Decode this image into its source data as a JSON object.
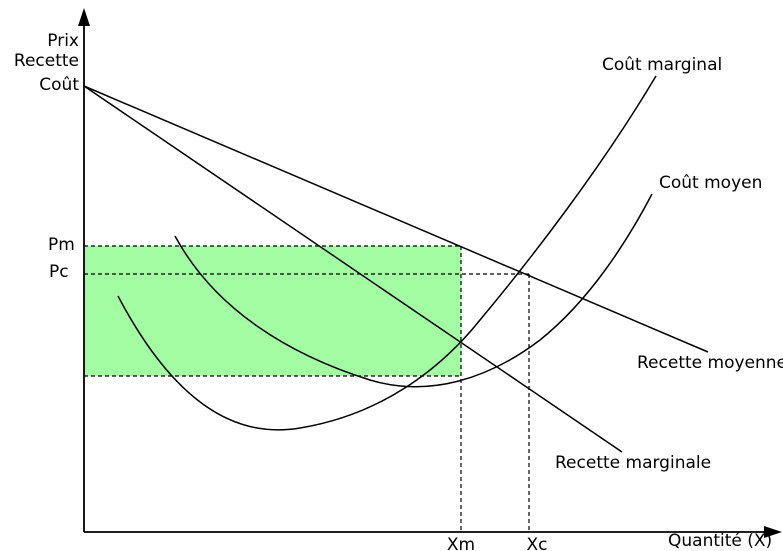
{
  "y_axis_label": [
    "Prix",
    "Recette",
    "Coût"
  ],
  "x_axis_label": "Quantité (X)",
  "price_ticks": {
    "monopoly": "Pm",
    "competition": "Pc"
  },
  "quantity_ticks": {
    "monopoly": "Xm",
    "competition": "Xc"
  },
  "curves": {
    "marginal_cost": "Coût marginal",
    "average_cost": "Coût moyen",
    "average_revenue": "Recette moyenne",
    "marginal_revenue": "Recette marginale"
  },
  "colors": {
    "profit_area": "#a2fca2",
    "lines": "#000000",
    "background": "#ffffff"
  }
}
